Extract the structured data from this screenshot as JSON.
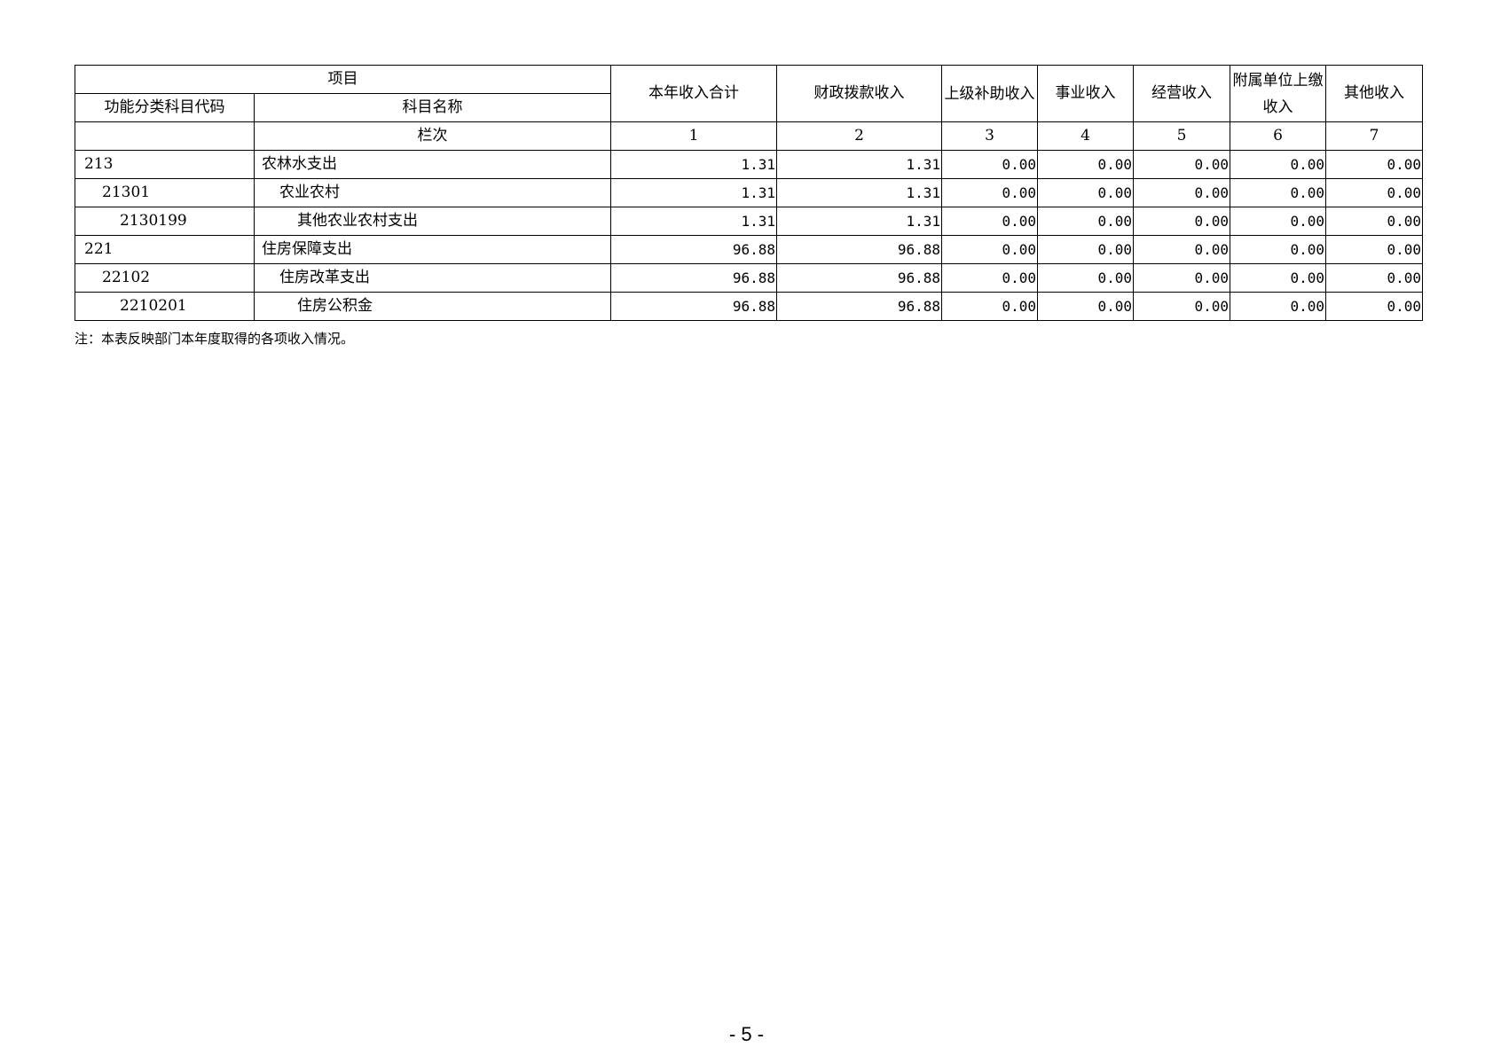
{
  "header": {
    "project": "项目",
    "code": "功能分类科目代码",
    "name": "科目名称",
    "column_no": "栏次",
    "columns": [
      {
        "label": "本年收入合计",
        "no": "1"
      },
      {
        "label": "财政拨款收入",
        "no": "2"
      },
      {
        "label": "上级补助收入",
        "no": "3"
      },
      {
        "label": "事业收入",
        "no": "4"
      },
      {
        "label": "经营收入",
        "no": "5"
      },
      {
        "label": "附属单位上缴收入",
        "no": "6"
      },
      {
        "label": "其他收入",
        "no": "7"
      }
    ]
  },
  "rows": [
    {
      "code": "213",
      "name": "农林水支出",
      "level": 1,
      "values": [
        "1.31",
        "1.31",
        "0.00",
        "0.00",
        "0.00",
        "0.00",
        "0.00"
      ]
    },
    {
      "code": "21301",
      "name": "农业农村",
      "level": 2,
      "values": [
        "1.31",
        "1.31",
        "0.00",
        "0.00",
        "0.00",
        "0.00",
        "0.00"
      ]
    },
    {
      "code": "2130199",
      "name": "其他农业农村支出",
      "level": 3,
      "values": [
        "1.31",
        "1.31",
        "0.00",
        "0.00",
        "0.00",
        "0.00",
        "0.00"
      ]
    },
    {
      "code": "221",
      "name": "住房保障支出",
      "level": 1,
      "values": [
        "96.88",
        "96.88",
        "0.00",
        "0.00",
        "0.00",
        "0.00",
        "0.00"
      ]
    },
    {
      "code": "22102",
      "name": "住房改革支出",
      "level": 2,
      "values": [
        "96.88",
        "96.88",
        "0.00",
        "0.00",
        "0.00",
        "0.00",
        "0.00"
      ]
    },
    {
      "code": "2210201",
      "name": "住房公积金",
      "level": 3,
      "values": [
        "96.88",
        "96.88",
        "0.00",
        "0.00",
        "0.00",
        "0.00",
        "0.00"
      ]
    }
  ],
  "note": "注：本表反映部门本年度取得的各项收入情况。",
  "page_number": "- 5 -"
}
